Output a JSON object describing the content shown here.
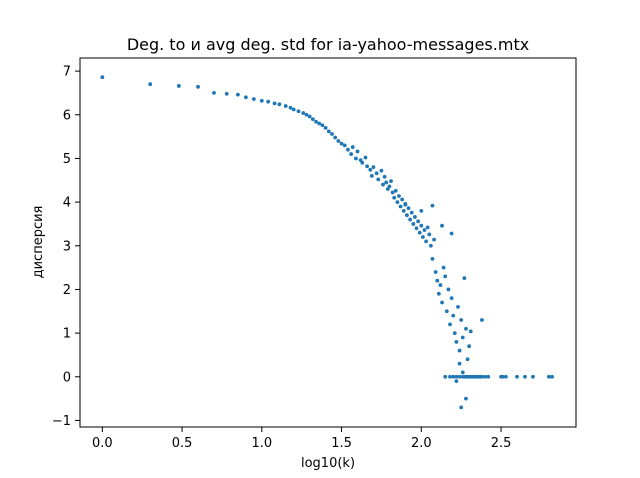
{
  "chart_data": {
    "type": "scatter",
    "title": "Deg. to и avg deg. std for ia-yahoo-messages.mtx",
    "xlabel": "log10(k)",
    "ylabel": "дисперсия",
    "xlim": [
      -0.14,
      2.97
    ],
    "ylim": [
      -1.15,
      7.3
    ],
    "x_ticks": [
      {
        "value": 0.0,
        "label": "0.0"
      },
      {
        "value": 0.5,
        "label": "0.5"
      },
      {
        "value": 1.0,
        "label": "1.0"
      },
      {
        "value": 1.5,
        "label": "1.5"
      },
      {
        "value": 2.0,
        "label": "2.0"
      },
      {
        "value": 2.5,
        "label": "2.5"
      }
    ],
    "y_ticks": [
      {
        "value": -1,
        "label": "−1"
      },
      {
        "value": 0,
        "label": "0"
      },
      {
        "value": 1,
        "label": "1"
      },
      {
        "value": 2,
        "label": "2"
      },
      {
        "value": 3,
        "label": "3"
      },
      {
        "value": 4,
        "label": "4"
      },
      {
        "value": 5,
        "label": "5"
      },
      {
        "value": 6,
        "label": "6"
      },
      {
        "value": 7,
        "label": "7"
      }
    ],
    "grid": false,
    "marker_color": "#1f77b4",
    "points": [
      [
        0.0,
        6.86
      ],
      [
        0.3,
        6.7
      ],
      [
        0.48,
        6.66
      ],
      [
        0.6,
        6.64
      ],
      [
        0.7,
        6.5
      ],
      [
        0.78,
        6.48
      ],
      [
        0.85,
        6.46
      ],
      [
        0.9,
        6.4
      ],
      [
        0.95,
        6.36
      ],
      [
        1.0,
        6.32
      ],
      [
        1.04,
        6.3
      ],
      [
        1.08,
        6.26
      ],
      [
        1.11,
        6.24
      ],
      [
        1.15,
        6.2
      ],
      [
        1.18,
        6.16
      ],
      [
        1.2,
        6.12
      ],
      [
        1.23,
        6.08
      ],
      [
        1.26,
        6.04
      ],
      [
        1.28,
        6.0
      ],
      [
        1.3,
        5.96
      ],
      [
        1.32,
        5.9
      ],
      [
        1.34,
        5.84
      ],
      [
        1.36,
        5.8
      ],
      [
        1.38,
        5.76
      ],
      [
        1.4,
        5.7
      ],
      [
        1.42,
        5.62
      ],
      [
        1.44,
        5.56
      ],
      [
        1.46,
        5.48
      ],
      [
        1.48,
        5.4
      ],
      [
        1.5,
        5.34
      ],
      [
        1.52,
        5.3
      ],
      [
        1.54,
        5.2
      ],
      [
        1.56,
        5.1
      ],
      [
        1.57,
        5.26
      ],
      [
        1.59,
        5.0
      ],
      [
        1.6,
        5.16
      ],
      [
        1.62,
        4.96
      ],
      [
        1.63,
        4.9
      ],
      [
        1.65,
        5.02
      ],
      [
        1.66,
        4.82
      ],
      [
        1.68,
        4.74
      ],
      [
        1.69,
        4.6
      ],
      [
        1.7,
        4.8
      ],
      [
        1.72,
        4.66
      ],
      [
        1.73,
        4.52
      ],
      [
        1.75,
        4.72
      ],
      [
        1.76,
        4.4
      ],
      [
        1.77,
        4.58
      ],
      [
        1.78,
        4.45
      ],
      [
        1.79,
        4.3
      ],
      [
        1.8,
        4.36
      ],
      [
        1.81,
        4.48
      ],
      [
        1.82,
        4.22
      ],
      [
        1.83,
        4.1
      ],
      [
        1.84,
        4.26
      ],
      [
        1.85,
        4.0
      ],
      [
        1.86,
        4.14
      ],
      [
        1.87,
        3.9
      ],
      [
        1.88,
        4.06
      ],
      [
        1.89,
        3.8
      ],
      [
        1.9,
        3.96
      ],
      [
        1.91,
        3.7
      ],
      [
        1.92,
        3.86
      ],
      [
        1.93,
        3.6
      ],
      [
        1.94,
        3.76
      ],
      [
        1.95,
        3.5
      ],
      [
        1.96,
        3.66
      ],
      [
        1.97,
        3.4
      ],
      [
        1.98,
        3.56
      ],
      [
        1.99,
        3.3
      ],
      [
        2.0,
        3.46
      ],
      [
        2.01,
        3.2
      ],
      [
        2.02,
        3.36
      ],
      [
        2.03,
        3.1
      ],
      [
        2.04,
        3.42
      ],
      [
        2.05,
        3.26
      ],
      [
        2.06,
        3.0
      ],
      [
        2.07,
        2.7
      ],
      [
        2.08,
        3.14
      ],
      [
        2.09,
        2.4
      ],
      [
        2.1,
        2.2
      ],
      [
        2.11,
        1.9
      ],
      [
        2.12,
        2.1
      ],
      [
        2.13,
        1.7
      ],
      [
        2.14,
        2.5
      ],
      [
        2.15,
        2.3
      ],
      [
        2.16,
        1.5
      ],
      [
        2.17,
        2.0
      ],
      [
        2.18,
        1.2
      ],
      [
        2.19,
        1.8
      ],
      [
        2.2,
        1.4
      ],
      [
        2.21,
        1.0
      ],
      [
        2.22,
        0.8
      ],
      [
        2.23,
        1.6
      ],
      [
        2.24,
        0.6
      ],
      [
        2.25,
        1.3
      ],
      [
        2.26,
        0.9
      ],
      [
        2.27,
        2.26
      ],
      [
        2.28,
        1.1
      ],
      [
        2.29,
        0.4
      ],
      [
        2.3,
        0.7
      ],
      [
        2.31,
        1.04
      ],
      [
        2.38,
        1.3
      ],
      [
        2.0,
        3.8
      ],
      [
        1.9,
        3.94
      ],
      [
        2.13,
        3.46
      ],
      [
        2.19,
        3.28
      ],
      [
        2.07,
        3.92
      ],
      [
        2.15,
        0.0
      ],
      [
        2.18,
        0.0
      ],
      [
        2.2,
        0.0
      ],
      [
        2.22,
        0.0
      ],
      [
        2.24,
        0.0
      ],
      [
        2.26,
        0.0
      ],
      [
        2.27,
        0.0
      ],
      [
        2.28,
        0.0
      ],
      [
        2.29,
        0.0
      ],
      [
        2.3,
        0.0
      ],
      [
        2.31,
        0.0
      ],
      [
        2.32,
        0.0
      ],
      [
        2.33,
        0.0
      ],
      [
        2.34,
        0.0
      ],
      [
        2.35,
        0.0
      ],
      [
        2.36,
        0.0
      ],
      [
        2.37,
        0.0
      ],
      [
        2.38,
        0.0
      ],
      [
        2.4,
        0.0
      ],
      [
        2.42,
        0.0
      ],
      [
        2.5,
        0.0
      ],
      [
        2.51,
        0.0
      ],
      [
        2.53,
        0.0
      ],
      [
        2.6,
        0.0
      ],
      [
        2.65,
        0.0
      ],
      [
        2.7,
        0.0
      ],
      [
        2.8,
        0.0
      ],
      [
        2.82,
        0.0
      ],
      [
        2.25,
        -0.7
      ],
      [
        2.28,
        -0.5
      ],
      [
        2.22,
        -0.1
      ],
      [
        2.26,
        0.1
      ],
      [
        2.24,
        0.3
      ]
    ]
  }
}
